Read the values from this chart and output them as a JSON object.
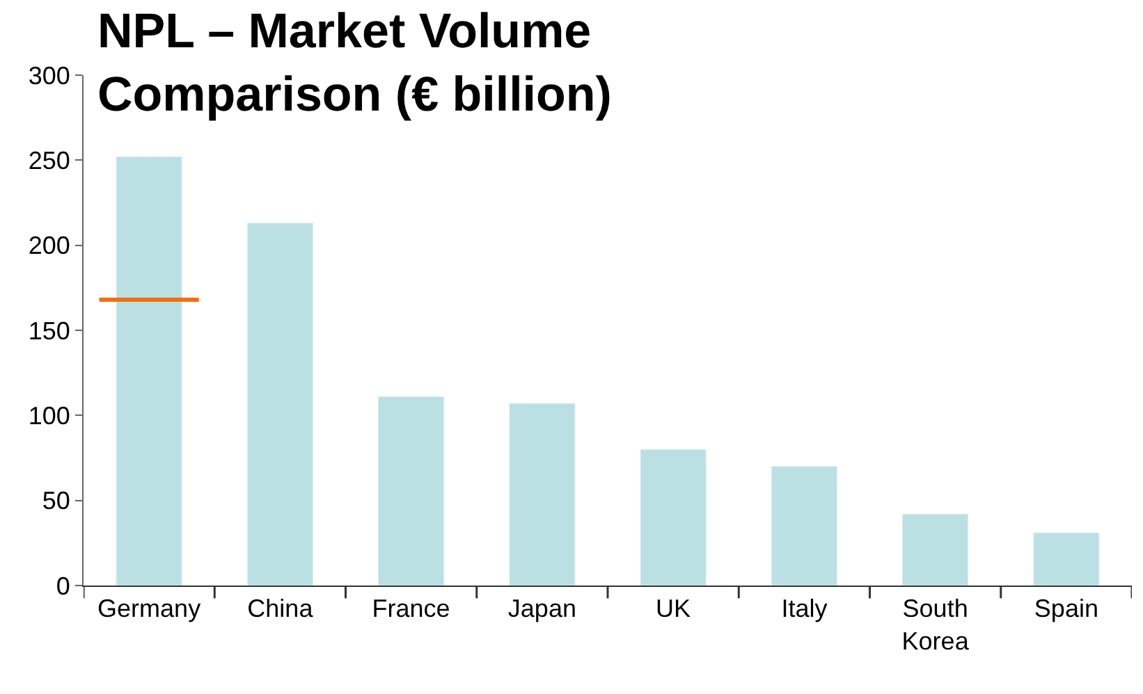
{
  "chart_data": {
    "type": "bar",
    "title": "NPL – Market Volume Comparison (€ billion)",
    "categories": [
      "Germany",
      "China",
      "France",
      "Japan",
      "UK",
      "Italy",
      "South Korea",
      "Spain"
    ],
    "series": [
      {
        "color": "#bae0e3",
        "values": [
          252,
          213,
          111,
          107,
          80,
          70,
          42,
          31
        ]
      }
    ],
    "ref_lines": [
      {
        "axis": "y",
        "value": 168,
        "color": "#f07010"
      }
    ],
    "ylim": [
      0,
      300
    ],
    "yticks": [
      0,
      50,
      100,
      150,
      200,
      250,
      300
    ],
    "grid": false
  }
}
